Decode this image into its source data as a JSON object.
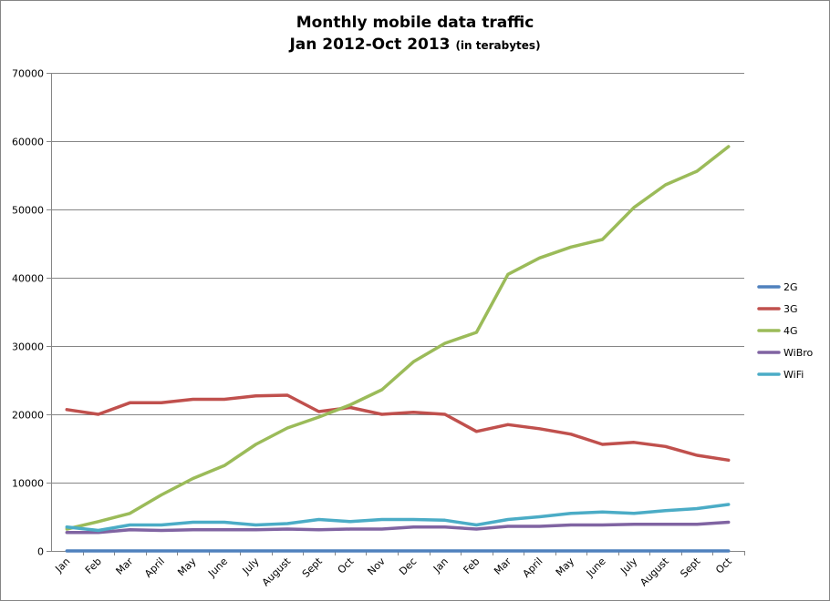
{
  "chart_data": {
    "type": "line",
    "title": "Monthly mobile data traffic",
    "subtitle": "Jan 2012-Oct 2013",
    "subtitle_note": "(in terabytes)",
    "xlabel": "",
    "ylabel": "",
    "ylim": [
      0,
      70000
    ],
    "yticks": [
      "0",
      "10000",
      "20000",
      "30000",
      "40000",
      "50000",
      "60000",
      "70000"
    ],
    "grid": true,
    "legend_position": "right",
    "categories": [
      "Jan",
      "Feb",
      "Mar",
      "April",
      "May",
      "June",
      "July",
      "August",
      "Sept",
      "Oct",
      "Nov",
      "Dec",
      "Jan",
      "Feb",
      "Mar",
      "April",
      "May",
      "June",
      "July",
      "August",
      "Sept",
      "Oct"
    ],
    "series": [
      {
        "name": "2G",
        "color": "#4F81BD",
        "values": [
          0,
          0,
          0,
          0,
          0,
          0,
          0,
          0,
          0,
          0,
          0,
          0,
          0,
          0,
          0,
          0,
          0,
          0,
          0,
          0,
          0,
          0
        ]
      },
      {
        "name": "3G",
        "color": "#C0504D",
        "values": [
          20700,
          20000,
          21700,
          21700,
          22200,
          22200,
          22700,
          22800,
          20400,
          21000,
          20000,
          20300,
          20000,
          17500,
          18500,
          17900,
          17100,
          15600,
          15900,
          15300,
          14000,
          13300
        ]
      },
      {
        "name": "4G",
        "color": "#9BBB59",
        "values": [
          3200,
          4300,
          5500,
          8200,
          10600,
          12500,
          15600,
          18000,
          19600,
          21400,
          23600,
          27700,
          30400,
          32000,
          40500,
          42900,
          44500,
          45600,
          50300,
          53600,
          55600,
          59200
        ]
      },
      {
        "name": "WiBro",
        "color": "#8064A2",
        "values": [
          2700,
          2700,
          3100,
          3000,
          3100,
          3100,
          3100,
          3200,
          3100,
          3200,
          3200,
          3500,
          3500,
          3200,
          3600,
          3600,
          3800,
          3800,
          3900,
          3900,
          3900,
          4200
        ]
      },
      {
        "name": "WiFi",
        "color": "#4BACC6",
        "values": [
          3500,
          3000,
          3800,
          3800,
          4200,
          4200,
          3800,
          4000,
          4600,
          4300,
          4600,
          4600,
          4500,
          3800,
          4600,
          5000,
          5500,
          5700,
          5500,
          5900,
          6200,
          6800
        ]
      }
    ]
  }
}
